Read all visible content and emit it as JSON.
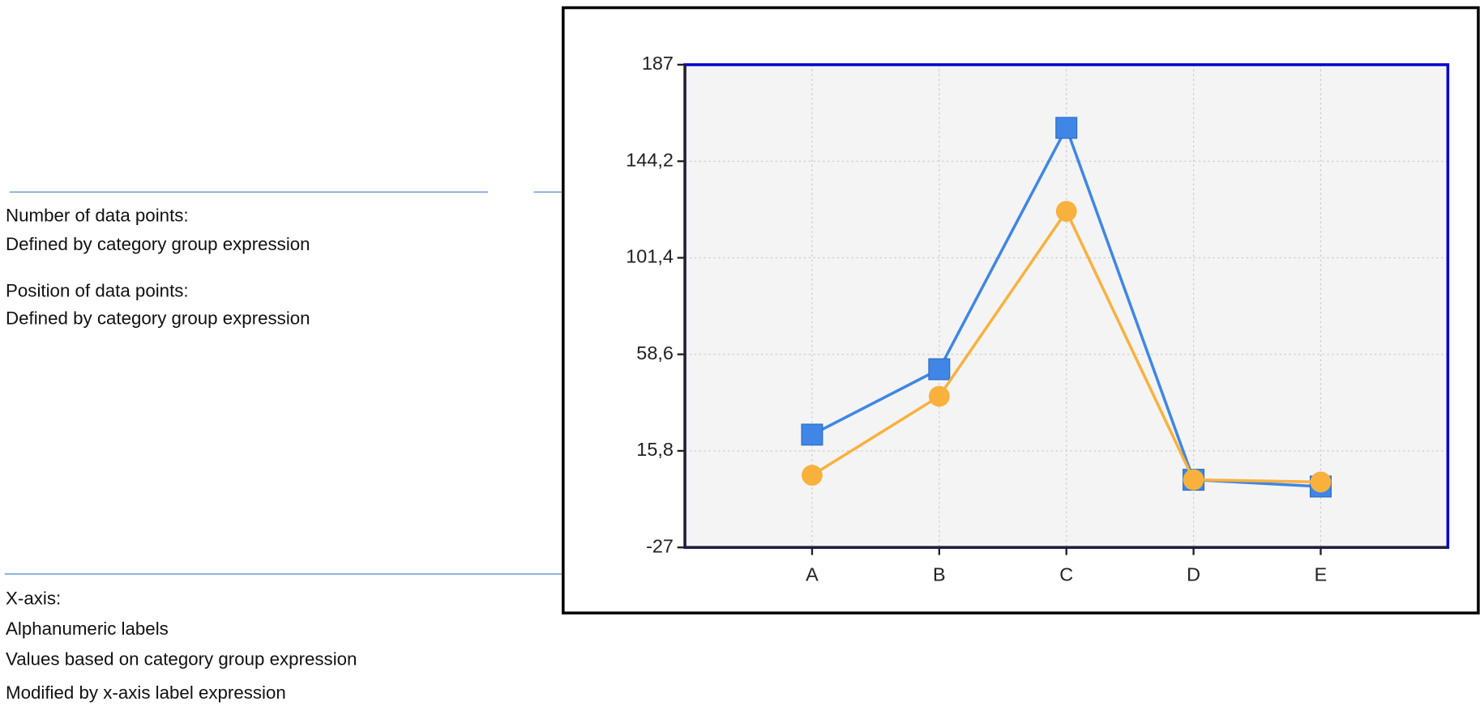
{
  "notes": [
    [
      "Number of data points:",
      "Defined by category group expression"
    ],
    [
      "Position of data points:",
      "Defined by category group expression"
    ],
    [
      "X-axis:",
      "Alphanumeric labels",
      "Values based on category group expression",
      "Modified by x-axis label expression"
    ]
  ],
  "chart_data": {
    "type": "line",
    "categories": [
      "A",
      "B",
      "C",
      "D",
      "E"
    ],
    "series": [
      {
        "color": "#3f86e6",
        "marker": "square",
        "values": [
          23,
          52,
          159,
          3,
          0
        ]
      },
      {
        "color": "#f9b13d",
        "marker": "circle",
        "values": [
          5,
          40,
          122,
          3,
          2
        ]
      }
    ],
    "ylim": [
      -27,
      187
    ],
    "yticks": [
      -27,
      {
        "value": 15.8,
        "label": "15,8"
      },
      {
        "value": 58.6,
        "label": "58,6"
      },
      {
        "value": 101.4,
        "label": "101,4"
      },
      {
        "value": 144.2,
        "label": "144,2"
      },
      187
    ],
    "grid": true
  }
}
